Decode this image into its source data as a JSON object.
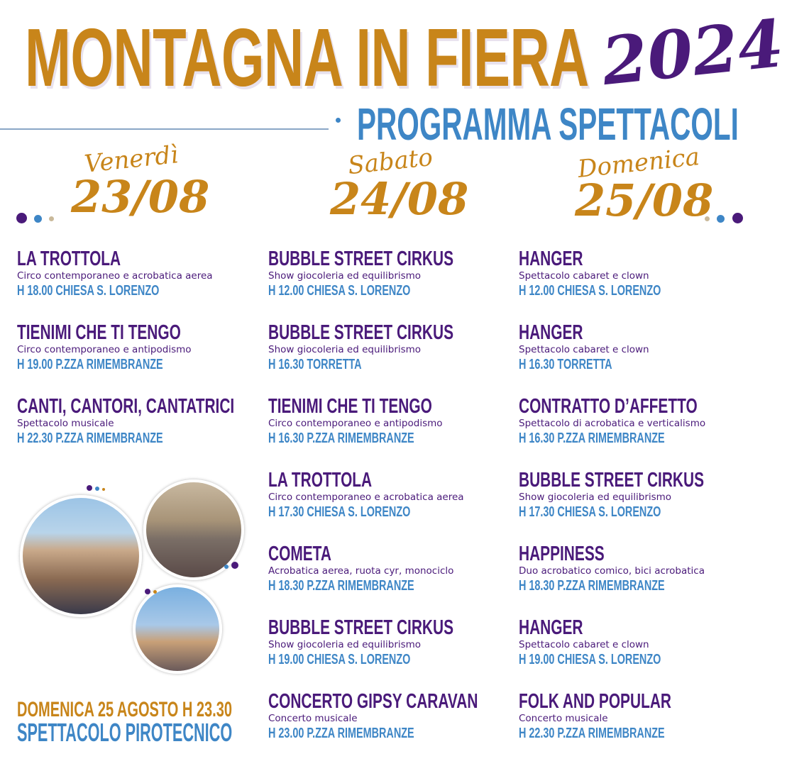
{
  "header": {
    "title": "MONTAGNA IN FIERA",
    "year": "2024",
    "subtitle": "PROGRAMMA SPETTACOLI"
  },
  "colors": {
    "orange": "#c8851a",
    "purple": "#4a1a7a",
    "blue": "#3e86c6",
    "beige": "#c9b99a"
  },
  "days": [
    {
      "name": "Venerdì",
      "date": "23/08",
      "events": [
        {
          "title": "LA TROTTOLA",
          "desc": "Circo contemporaneo e acrobatica aerea",
          "time": "H 18.00 CHIESA S. LORENZO"
        },
        {
          "title": "TIENIMI CHE TI TENGO",
          "desc": "Circo contemporaneo e antipodismo",
          "time": "H 19.00 P.ZZA RIMEMBRANZE"
        },
        {
          "title": "CANTI, CANTORI, CANTATRICI",
          "desc": "Spettacolo musicale",
          "time": "H 22.30 P.ZZA RIMEMBRANZE"
        }
      ]
    },
    {
      "name": "Sabato",
      "date": "24/08",
      "events": [
        {
          "title": "BUBBLE STREET CIRKUS",
          "desc": "Show giocoleria ed equilibrismo",
          "time": "H 12.00 CHIESA S. LORENZO"
        },
        {
          "title": "BUBBLE STREET CIRKUS",
          "desc": "Show giocoleria ed equilibrismo",
          "time": "H 16.30 TORRETTA"
        },
        {
          "title": "TIENIMI CHE TI TENGO",
          "desc": "Circo contemporaneo e antipodismo",
          "time": "H 16.30 P.ZZA RIMEMBRANZE"
        },
        {
          "title": "LA TROTTOLA",
          "desc": "Circo contemporaneo e acrobatica aerea",
          "time": "H 17.30 CHIESA S. LORENZO"
        },
        {
          "title": "COMETA",
          "desc": "Acrobatica aerea, ruota cyr, monociclo",
          "time": "H 18.30 P.ZZA RIMEMBRANZE"
        },
        {
          "title": "BUBBLE STREET CIRKUS",
          "desc": "Show giocoleria ed equilibrismo",
          "time": "H 19.00 CHIESA S. LORENZO"
        },
        {
          "title": "CONCERTO GIPSY CARAVAN",
          "desc": "Concerto musicale",
          "time": "H 23.00 P.ZZA RIMEMBRANZE"
        }
      ]
    },
    {
      "name": "Domenica",
      "date": "25/08",
      "events": [
        {
          "title": "HANGER",
          "desc": "Spettacolo cabaret e clown",
          "time": "H 12.00 CHIESA S. LORENZO"
        },
        {
          "title": "HANGER",
          "desc": "Spettacolo cabaret e clown",
          "time": "H 16.30 TORRETTA"
        },
        {
          "title": "CONTRATTO D’AFFETTO",
          "desc": "Spettacolo di acrobatica e verticalismo",
          "time": "H 16.30 P.ZZA RIMEMBRANZE"
        },
        {
          "title": "BUBBLE STREET CIRKUS",
          "desc": "Show giocoleria ed equilibrismo",
          "time": "H 17.30 CHIESA S. LORENZO"
        },
        {
          "title": "HAPPINESS",
          "desc": "Duo acrobatico comico, bici acrobatica",
          "time": "H 18.30 P.ZZA RIMEMBRANZE"
        },
        {
          "title": "HANGER",
          "desc": "Spettacolo cabaret e clown",
          "time": "H 19.00 CHIESA S. LORENZO"
        },
        {
          "title": "FOLK AND POPULAR",
          "desc": "Concerto musicale",
          "time": "H 22.30 P.ZZA RIMEMBRANZE"
        }
      ]
    }
  ],
  "fireworks": {
    "line1": "DOMENICA 25 AGOSTO H 23.30",
    "line2": "SPETTACOLO PIROTECNICO"
  }
}
